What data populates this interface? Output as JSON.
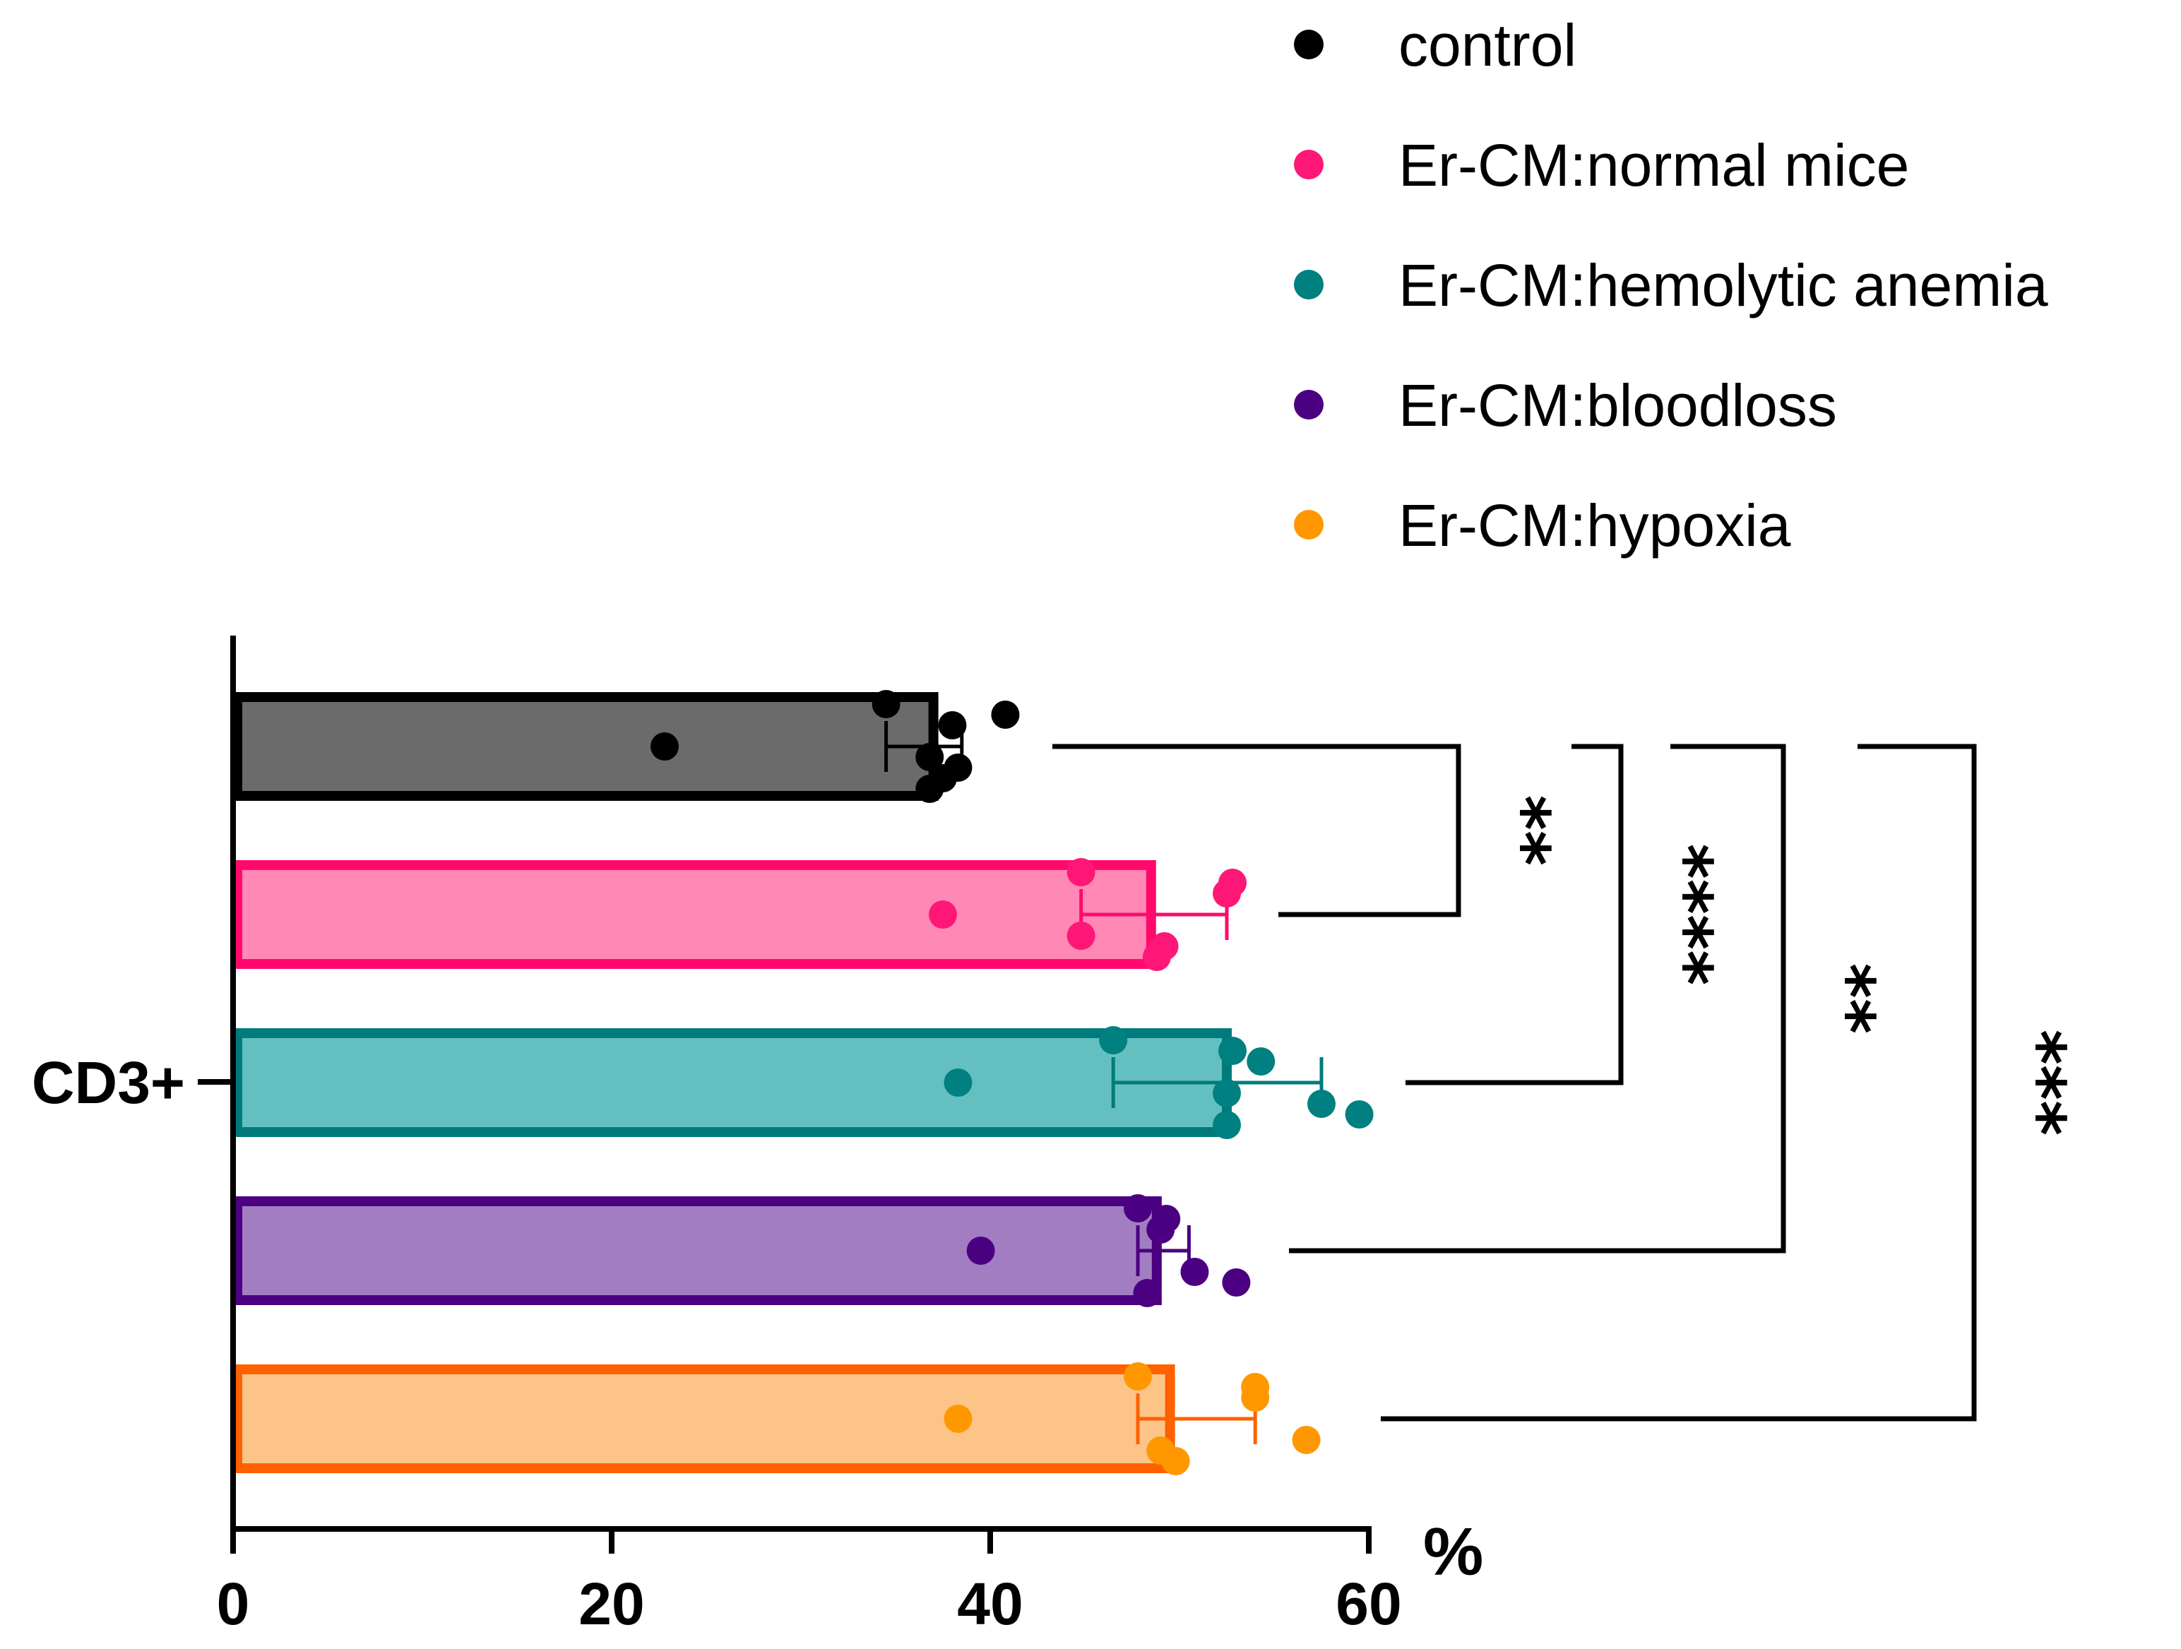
{
  "chart_data": {
    "type": "bar",
    "orientation": "horizontal",
    "category": "CD3+",
    "xlabel": "%",
    "xlim": [
      0,
      60
    ],
    "xticks": [
      "0",
      "20",
      "40",
      "60"
    ],
    "legend_position": "top-right",
    "series": [
      {
        "name": "control",
        "mean": 37,
        "error": [
          34.5,
          38.5
        ],
        "points": [
          22.8,
          34.5,
          36.8,
          38.0,
          38.3,
          37.5,
          40.8,
          36.8
        ],
        "bar_color": "#6b6b6b",
        "edge_color": "#000000",
        "dot_color": "#000000"
      },
      {
        "name": "Er-CM:normal mice",
        "mean": 48.5,
        "error": [
          44.8,
          52.5
        ],
        "points": [
          37.5,
          44.8,
          48.8,
          52.5,
          44.8,
          49.2,
          52.8
        ],
        "bar_color": "#ff88b5",
        "edge_color": "#ff0a6c",
        "dot_color": "#ff1777"
      },
      {
        "name": "Er-CM:hemolytic anemia",
        "mean": 52.5,
        "error": [
          46.5,
          57.5
        ],
        "points": [
          38.3,
          46.5,
          52.5,
          54.3,
          57.5,
          59.5,
          52.8,
          52.5
        ],
        "bar_color": "#64c0c0",
        "edge_color": "#007b7b",
        "dot_color": "#008080"
      },
      {
        "name": "Er-CM:bloodloss",
        "mean": 48.8,
        "error": [
          47.8,
          50.5
        ],
        "points": [
          39.5,
          47.8,
          48.3,
          49.0,
          50.8,
          53.0,
          49.3
        ],
        "bar_color": "#a37dc2",
        "edge_color": "#4a0080",
        "dot_color": "#4b0082"
      },
      {
        "name": "Er-CM:hypoxia",
        "mean": 49.5,
        "error": [
          47.8,
          54.0
        ],
        "points": [
          38.3,
          47.8,
          49.8,
          54.0,
          56.7,
          49.0,
          54.0
        ],
        "bar_color": "#fdc488",
        "edge_color": "#ff6000",
        "dot_color": "#ff9800"
      }
    ],
    "comparisons": [
      {
        "from": "control",
        "to": "Er-CM:normal mice",
        "label": "**"
      },
      {
        "from": "control",
        "to": "Er-CM:hemolytic anemia",
        "label": "****"
      },
      {
        "from": "control",
        "to": "Er-CM:bloodloss",
        "label": "**"
      },
      {
        "from": "control",
        "to": "Er-CM:hypoxia",
        "label": "***"
      }
    ]
  }
}
